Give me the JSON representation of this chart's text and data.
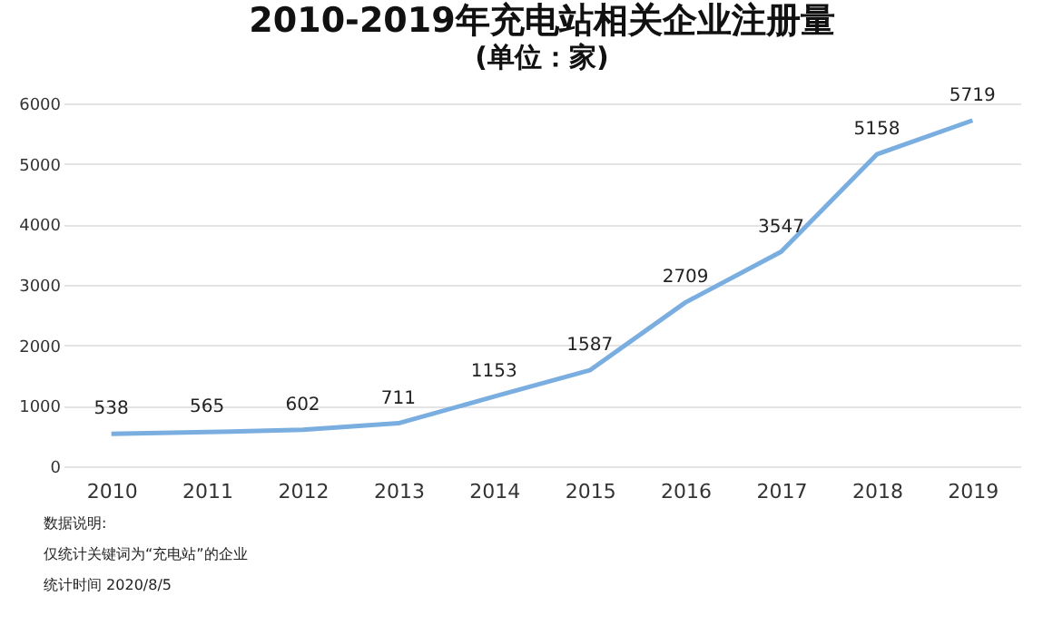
{
  "chart_data": {
    "type": "line",
    "title": "2010-2019年充电站相关企业注册量",
    "subtitle": "(单位：家)",
    "categories": [
      "2010",
      "2011",
      "2012",
      "2013",
      "2014",
      "2015",
      "2016",
      "2017",
      "2018",
      "2019"
    ],
    "series": [
      {
        "color": "#7aaee0",
        "values": [
          538,
          565,
          602,
          711,
          1153,
          1587,
          2709,
          3547,
          5158,
          5719
        ]
      }
    ],
    "ylim": [
      0,
      6000
    ],
    "yticks": [
      0,
      1000,
      2000,
      3000,
      4000,
      5000,
      6000
    ],
    "grid": "y",
    "data_labels": true,
    "marker": "none",
    "line_style": "solid",
    "annotations": [
      "数据说明:",
      "仅统计关键词为“充电站”的企业",
      "统计时间 2020/8/5"
    ]
  }
}
